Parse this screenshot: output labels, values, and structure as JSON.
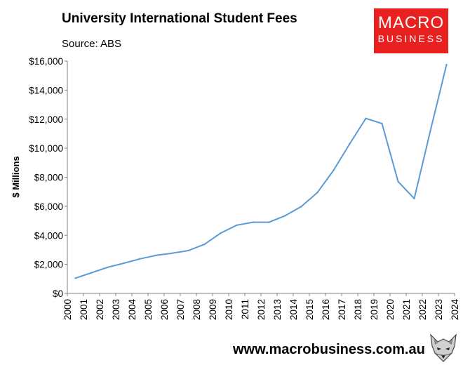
{
  "header": {
    "title": "University International Student Fees",
    "subtitle": "Source: ABS"
  },
  "logo": {
    "line1": "MACRO",
    "line2": "BUSINESS",
    "color": "#e8201f"
  },
  "footer": {
    "url": "www.macrobusiness.com.au",
    "mascot_icon": "fox-icon"
  },
  "chart_data": {
    "type": "line",
    "title": "University International Student Fees",
    "subtitle": "Source: ABS",
    "xlabel": "",
    "ylabel": "$ Millions",
    "ylim": [
      0,
      16000
    ],
    "xlim": [
      2000,
      2024
    ],
    "grid": false,
    "legend": "none",
    "y_ticks": [
      0,
      2000,
      4000,
      6000,
      8000,
      10000,
      12000,
      14000,
      16000
    ],
    "y_tick_labels": [
      "$0",
      "$2,000",
      "$4,000",
      "$6,000",
      "$8,000",
      "$10,000",
      "$12,000",
      "$14,000",
      "$16,000"
    ],
    "x_ticks": [
      2000,
      2001,
      2002,
      2003,
      2004,
      2005,
      2006,
      2007,
      2008,
      2009,
      2010,
      2011,
      2012,
      2013,
      2014,
      2015,
      2016,
      2017,
      2018,
      2019,
      2020,
      2021,
      2022,
      2023,
      2024
    ],
    "x_tick_labels": [
      "2000",
      "2001",
      "2002",
      "2003",
      "2004",
      "2005",
      "2006",
      "2007",
      "2008",
      "2009",
      "2010",
      "2011",
      "2012",
      "2013",
      "2014",
      "2015",
      "2016",
      "2017",
      "2018",
      "2019",
      "2020",
      "2021",
      "2022",
      "2023",
      "2024"
    ],
    "series": [
      {
        "color": "#5b9bd5",
        "x": [
          2000.5,
          2001.5,
          2002.5,
          2003.5,
          2004.5,
          2005.5,
          2006.5,
          2007.5,
          2008.5,
          2009.5,
          2010.5,
          2011.5,
          2012.5,
          2013.5,
          2014.5,
          2015.5,
          2016.5,
          2017.5,
          2018.5,
          2019.5,
          2020.5,
          2021.5,
          2022.5,
          2023.5
        ],
        "values": [
          1050,
          1420,
          1800,
          2080,
          2380,
          2620,
          2770,
          2950,
          3380,
          4150,
          4700,
          4900,
          4900,
          5350,
          5980,
          6950,
          8480,
          10300,
          12050,
          11700,
          7700,
          6530,
          11200,
          15750
        ]
      }
    ]
  }
}
